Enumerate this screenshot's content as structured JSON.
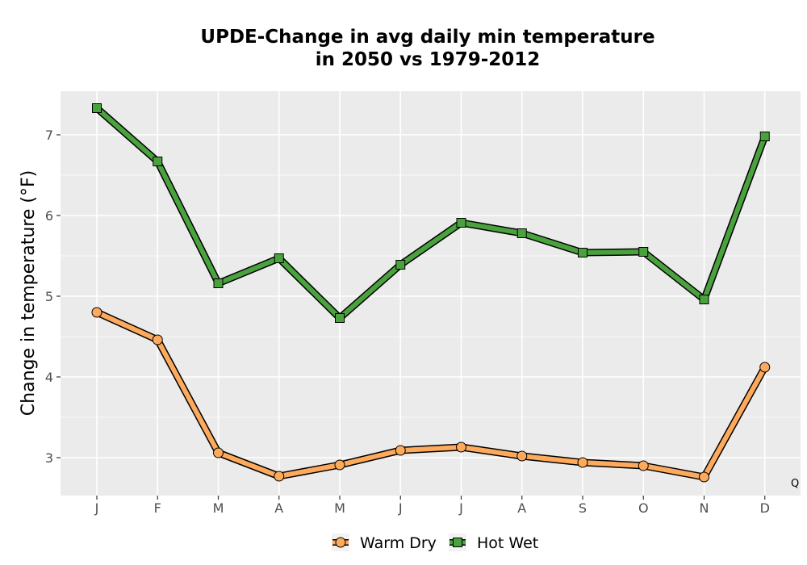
{
  "chart_data": {
    "type": "line",
    "title_line1": "UPDE-Change in avg daily min temperature",
    "title_line2": "in 2050 vs 1979-2012",
    "xlabel": "",
    "ylabel": "Change in temperature (°F)",
    "categories": [
      "J",
      "F",
      "M",
      "A",
      "M",
      "J",
      "J",
      "A",
      "S",
      "O",
      "N",
      "D"
    ],
    "ylim": [
      2.53,
      7.54
    ],
    "yticks": [
      3,
      4,
      5,
      6,
      7
    ],
    "grid": true,
    "legend_position": "bottom",
    "annotation": "Q",
    "series": [
      {
        "name": "Warm Dry",
        "marker": "circle",
        "color": "#fdaa5d",
        "values": [
          4.8,
          4.46,
          3.06,
          2.77,
          2.91,
          3.09,
          3.13,
          3.02,
          2.94,
          2.9,
          2.76,
          4.12
        ]
      },
      {
        "name": "Hot Wet",
        "marker": "square",
        "color": "#4aa23e",
        "values": [
          7.33,
          6.67,
          5.16,
          5.47,
          4.73,
          5.39,
          5.91,
          5.78,
          5.54,
          5.55,
          4.96,
          6.98
        ]
      }
    ]
  }
}
